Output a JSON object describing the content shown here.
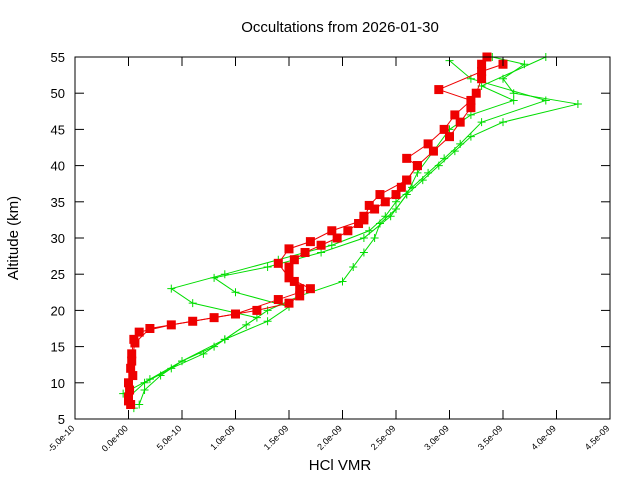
{
  "chart_data": {
    "type": "line",
    "title": "Occultations from 2026-01-30",
    "x_label": "HCl VMR",
    "y_label": "Altitude (km)",
    "xlim": [
      -5e-10,
      4.5e-09
    ],
    "ylim": [
      5,
      55
    ],
    "xticks": [
      {
        "value": -5e-10,
        "label": "-5.0e-10"
      },
      {
        "value": 0,
        "label": "0.0e+00"
      },
      {
        "value": 5e-10,
        "label": "5.0e-10"
      },
      {
        "value": 1e-09,
        "label": "1.0e-09"
      },
      {
        "value": 1.5e-09,
        "label": "1.5e-09"
      },
      {
        "value": 2e-09,
        "label": "2.0e-09"
      },
      {
        "value": 2.5e-09,
        "label": "2.5e-09"
      },
      {
        "value": 3e-09,
        "label": "3.0e-09"
      },
      {
        "value": 3.5e-09,
        "label": "3.5e-09"
      },
      {
        "value": 4e-09,
        "label": "4.0e-09"
      },
      {
        "value": 4.5e-09,
        "label": "4.5e-09"
      }
    ],
    "yticks": [
      5,
      10,
      15,
      20,
      25,
      30,
      35,
      40,
      45,
      50,
      55
    ],
    "series": [
      {
        "color": "#00dd00",
        "marker": "plus",
        "x": [
          5e-11,
          0,
          1.5e-10,
          4e-10,
          7e-10,
          9e-10,
          1.1e-09,
          1.3e-09,
          1.6e-09,
          2e-09,
          2.1e-09,
          2.2e-09,
          2.3e-09,
          2.35e-09,
          2.5e-09,
          2.6e-09,
          2.75e-09,
          2.9e-09,
          3.05e-09,
          3.2e-09,
          3.5e-09,
          4.2e-09,
          3.6e-09,
          3.5e-09,
          3.7e-09,
          3.4e-09
        ],
        "values": [
          6.5,
          8,
          10,
          12,
          14,
          16,
          18,
          20,
          22,
          24,
          26,
          28,
          30,
          32,
          34,
          36,
          38,
          40,
          42,
          44,
          46,
          48.5,
          50,
          52,
          54,
          55
        ]
      },
      {
        "color": "#00dd00",
        "marker": "plus",
        "x": [
          1e-10,
          1.5e-10,
          3e-10,
          5e-10,
          8e-10,
          1.2e-09,
          6e-10,
          4e-10,
          9e-10,
          1.4e-09,
          1.9e-09,
          2.25e-09,
          2.4e-09,
          2.5e-09,
          2.65e-09,
          2.8e-09,
          2.95e-09,
          3.1e-09,
          3.3e-09,
          3.9e-09,
          3.2e-09,
          3e-09
        ],
        "values": [
          7,
          9,
          11,
          13,
          15,
          19,
          21,
          23,
          25,
          27,
          29,
          31,
          33,
          35,
          37,
          39,
          41,
          43,
          46,
          49,
          52,
          54.5
        ]
      },
      {
        "color": "#00dd00",
        "marker": "plus",
        "x": [
          -5e-11,
          2e-10,
          5e-10,
          9e-10,
          1.3e-09,
          1.5e-09,
          1e-09,
          8e-10,
          1.3e-09,
          1.8e-09,
          2.2e-09,
          2.45e-09,
          2.6e-09,
          2.7e-09,
          2.85e-09,
          3e-09,
          3.2e-09,
          3.6e-09,
          3.3e-09,
          3.9e-09
        ],
        "values": [
          8.5,
          10.5,
          13,
          16,
          18.5,
          20.5,
          22.5,
          24.5,
          26,
          28,
          30,
          33,
          36,
          39,
          42,
          45,
          47,
          49,
          51,
          55
        ]
      },
      {
        "color": "#ee0000",
        "marker": "square",
        "x": [
          2e-11,
          0,
          1e-11,
          0,
          2e-11,
          3e-11,
          5e-11,
          1e-10,
          4e-10,
          8e-10,
          1.2e-09,
          1.5e-09,
          1.6e-09,
          1.6e-09,
          1.55e-09,
          1.5e-09,
          1.5e-09,
          1.55e-09,
          1.65e-09,
          1.8e-09,
          1.95e-09,
          2.05e-09,
          2.15e-09,
          2.2e-09,
          2.3e-09,
          2.4e-09,
          2.5e-09,
          2.55e-09,
          2.6e-09,
          2.7e-09,
          2.85e-09,
          3e-09,
          3.1e-09,
          3.2e-09,
          3.25e-09,
          3.3e-09,
          3.3e-09,
          3.35e-09
        ],
        "values": [
          7,
          8,
          9,
          10,
          12,
          14,
          16,
          17,
          18,
          19,
          20,
          21,
          22,
          23,
          24,
          25,
          26,
          27,
          28,
          29,
          30,
          31,
          32,
          33,
          34,
          35,
          36,
          37,
          38,
          40,
          42,
          44,
          46,
          48,
          50,
          52,
          54,
          55
        ]
      },
      {
        "color": "#ee0000",
        "marker": "square",
        "x": [
          0,
          4e-11,
          3e-11,
          6e-11,
          2e-10,
          6e-10,
          1e-09,
          1.4e-09,
          1.7e-09,
          1.5e-09,
          1.4e-09,
          1.5e-09,
          1.7e-09,
          1.9e-09,
          2.2e-09,
          2.25e-09,
          2.35e-09,
          2.6e-09,
          2.7e-09,
          2.6e-09,
          2.8e-09,
          2.95e-09,
          3.05e-09,
          3.2e-09,
          2.9e-09,
          3.3e-09,
          3.5e-09
        ],
        "values": [
          7.5,
          11,
          13,
          15.5,
          17.5,
          18.5,
          19.5,
          21.5,
          23,
          24.5,
          26.5,
          28.5,
          29.5,
          31,
          32.5,
          34.5,
          36,
          38,
          40,
          41,
          43,
          45,
          47,
          49,
          50.5,
          53,
          54
        ]
      }
    ]
  }
}
